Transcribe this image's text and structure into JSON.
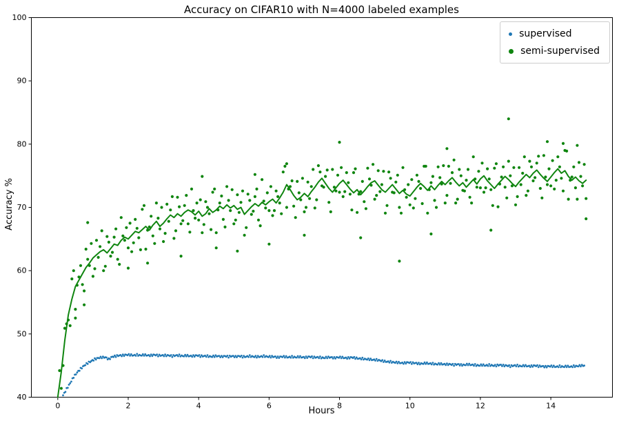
{
  "figure": {
    "title": "Accuracy on CIFAR10 with N=4000 labeled examples",
    "xlabel": "Hours",
    "ylabel": "Accuracy %"
  },
  "legend": {
    "items": [
      {
        "label": "supervised",
        "color": "#1f77b4"
      },
      {
        "label": "semi-supervised",
        "color": "#0f850f"
      }
    ]
  },
  "chart_data": {
    "type": "scatter",
    "title": "Accuracy on CIFAR10 with N=4000 labeled examples",
    "xlabel": "Hours",
    "ylabel": "Accuracy %",
    "xlim": [
      -0.75,
      15.75
    ],
    "ylim": [
      40,
      100
    ],
    "xticks": [
      0,
      2,
      4,
      6,
      8,
      10,
      12,
      14
    ],
    "yticks": [
      40,
      50,
      60,
      70,
      80,
      90,
      100
    ],
    "grid": false,
    "legend_position": "upper right",
    "series": [
      {
        "id": "supervised",
        "name": "supervised",
        "type": "scatter",
        "color": "#1f77b4",
        "marker_size": 1.4,
        "densify": 2,
        "jitter": 0.14,
        "x_start": 0.15,
        "x_step": 0.1,
        "y": [
          40.3,
          41.3,
          42.2,
          43.2,
          43.9,
          44.5,
          45.0,
          45.4,
          45.7,
          46.0,
          46.2,
          46.3,
          46.3,
          46.0,
          46.4,
          46.5,
          46.6,
          46.6,
          46.7,
          46.7,
          46.6,
          46.7,
          46.6,
          46.7,
          46.6,
          46.6,
          46.7,
          46.6,
          46.6,
          46.6,
          46.6,
          46.5,
          46.6,
          46.6,
          46.5,
          46.6,
          46.5,
          46.5,
          46.6,
          46.5,
          46.5,
          46.5,
          46.4,
          46.5,
          46.5,
          46.4,
          46.5,
          46.4,
          46.5,
          46.4,
          46.5,
          46.4,
          46.4,
          46.5,
          46.4,
          46.4,
          46.4,
          46.5,
          46.4,
          46.4,
          46.4,
          46.3,
          46.4,
          46.4,
          46.3,
          46.4,
          46.3,
          46.4,
          46.3,
          46.3,
          46.4,
          46.3,
          46.3,
          46.3,
          46.2,
          46.3,
          46.3,
          46.2,
          46.3,
          46.3,
          46.2,
          46.2,
          46.3,
          46.2,
          46.1,
          46.1,
          46.0,
          46.0,
          45.9,
          45.9,
          45.8,
          45.7,
          45.6,
          45.6,
          45.5,
          45.5,
          45.4,
          45.4,
          45.5,
          45.4,
          45.4,
          45.3,
          45.3,
          45.4,
          45.3,
          45.3,
          45.2,
          45.3,
          45.2,
          45.2,
          45.2,
          45.1,
          45.2,
          45.1,
          45.1,
          45.2,
          45.1,
          45.1,
          45.0,
          45.1,
          45.0,
          45.1,
          45.0,
          45.0,
          45.1,
          45.0,
          45.0,
          44.9,
          45.0,
          45.0,
          44.9,
          45.0,
          44.9,
          44.9,
          45.0,
          44.9,
          44.9,
          44.8,
          44.9,
          44.9,
          44.8,
          44.9,
          44.8,
          44.9,
          44.8,
          44.9,
          44.9,
          45.0,
          45.0
        ]
      },
      {
        "id": "semi-supervised-scatter-a",
        "name": "semi-supervised",
        "type": "scatter",
        "color": "#0f850f",
        "marker_size": 2.1,
        "x_start": 0.05,
        "x_step": 0.1,
        "y": [
          44.2,
          45.0,
          51.6,
          51.3,
          60.0,
          57.7,
          60.8,
          56.8,
          61.8,
          64.3,
          60.3,
          62.1,
          66.3,
          60.7,
          64.5,
          62.9,
          66.6,
          61.0,
          65.5,
          66.8,
          67.5,
          64.4,
          66.7,
          63.3,
          70.3,
          66.4,
          68.6,
          64.3,
          68.3,
          70.0,
          65.9,
          67.8,
          71.7,
          66.3,
          70.1,
          67.9,
          71.9,
          66.1,
          69.5,
          70.7,
          71.2,
          67.3,
          70.0,
          66.5,
          72.9,
          69.6,
          71.8,
          66.9,
          71.1,
          72.8,
          68.0,
          69.2,
          72.6,
          66.8,
          71.1,
          69.4,
          72.9,
          67.1,
          71.0,
          72.3,
          73.3,
          69.5,
          71.7,
          69.0,
          76.5,
          72.9,
          74.2,
          68.4,
          72.3,
          74.6,
          70.0,
          71.4,
          76.0,
          71.2,
          75.6,
          73.2,
          75.9,
          69.3,
          73.2,
          75.1,
          76.3,
          72.5,
          73.9,
          69.6,
          76.1,
          72.1,
          74.1,
          69.8,
          74.5,
          76.8,
          71.9,
          72.5,
          75.7,
          70.3,
          74.6,
          72.3,
          75.1,
          69.1,
          72.8,
          73.6,
          74.4,
          71.4,
          74.1,
          70.6,
          76.5,
          72.8,
          74.9,
          70.0,
          74.7,
          76.6,
          71.9,
          73.8,
          77.5,
          71.3,
          75.0,
          72.6,
          76.0,
          70.7,
          74.5,
          75.7,
          77.0,
          73.1,
          74.5,
          70.3,
          76.9,
          73.7,
          76.4,
          71.5,
          75.0,
          76.3,
          71.7,
          73.6,
          78.0,
          72.6,
          76.4,
          74.7,
          78.1,
          71.5,
          74.8,
          76.1,
          77.4,
          74.3,
          76.4,
          72.6,
          78.9,
          74.3,
          76.4,
          71.3,
          74.9,
          76.8
        ]
      },
      {
        "id": "semi-supervised-scatter-b",
        "name": "semi-supervised",
        "type": "scatter",
        "color": "#0f850f",
        "marker_size": 2.1,
        "x_start": 0.1,
        "x_step": 0.1,
        "y": [
          41.4,
          50.9,
          52.2,
          58.7,
          53.9,
          59.0,
          57.8,
          63.4,
          60.8,
          59.1,
          64.8,
          63.8,
          60.0,
          65.4,
          62.3,
          65.3,
          61.8,
          68.4,
          64.8,
          63.6,
          63.0,
          68.1,
          65.2,
          69.7,
          63.4,
          66.9,
          65.5,
          70.7,
          66.6,
          64.6,
          70.5,
          69.6,
          65.1,
          71.6,
          67.4,
          70.3,
          67.4,
          72.9,
          68.3,
          68.0,
          66.0,
          70.9,
          69.0,
          72.4,
          66.0,
          70.7,
          68.1,
          73.3,
          69.5,
          67.4,
          72.0,
          70.8,
          65.6,
          72.1,
          68.9,
          71.7,
          68.0,
          74.4,
          69.9,
          69.5,
          68.7,
          72.6,
          70.7,
          75.6,
          70.0,
          73.3,
          70.2,
          74.1,
          71.2,
          69.3,
          74.0,
          73.3,
          69.9,
          76.6,
          73.4,
          74.9,
          70.8,
          76.0,
          72.6,
          72.4,
          71.7,
          75.5,
          72.1,
          75.5,
          69.2,
          72.5,
          70.9,
          76.2,
          73.5,
          71.3,
          75.8,
          73.6,
          69.1,
          75.6,
          72.4,
          74.0,
          70.0,
          76.3,
          71.6,
          70.4,
          69.9,
          75.1,
          73.0,
          76.5,
          69.1,
          73.9,
          71.1,
          76.4,
          73.7,
          70.7,
          76.5,
          75.5,
          70.7,
          76.0,
          72.7,
          74.3,
          71.6,
          78.0,
          73.2,
          73.1,
          72.4,
          76.1,
          72.8,
          76.2,
          70.1,
          74.8,
          73.2,
          77.3,
          73.4,
          70.4,
          76.3,
          75.4,
          71.9,
          77.3,
          74.2,
          77.0,
          73.0,
          78.2,
          73.6,
          73.4,
          72.9,
          78.0,
          74.6,
          79.0,
          71.3,
          74.8,
          73.1,
          77.1,
          73.4,
          71.4
        ]
      },
      {
        "id": "semi-supervised-outliers",
        "name": "semi-supervised",
        "type": "scatter",
        "color": "#0f850f",
        "marker_size": 2.1,
        "points": [
          [
            0.5,
            52.5
          ],
          [
            0.75,
            54.6
          ],
          [
            0.85,
            67.6
          ],
          [
            2.0,
            60.4
          ],
          [
            2.55,
            61.2
          ],
          [
            3.5,
            62.3
          ],
          [
            4.1,
            74.9
          ],
          [
            4.5,
            63.6
          ],
          [
            5.1,
            63.1
          ],
          [
            5.6,
            75.2
          ],
          [
            6.0,
            64.2
          ],
          [
            6.5,
            76.9
          ],
          [
            7.0,
            65.6
          ],
          [
            8.0,
            80.3
          ],
          [
            8.6,
            65.2
          ],
          [
            9.7,
            61.5
          ],
          [
            10.6,
            65.8
          ],
          [
            11.05,
            79.3
          ],
          [
            12.3,
            66.4
          ],
          [
            12.8,
            84.0
          ],
          [
            13.9,
            80.4
          ],
          [
            14.35,
            80.1
          ],
          [
            14.75,
            79.8
          ],
          [
            15.0,
            68.2
          ]
        ]
      },
      {
        "id": "semi-supervised-smoothed",
        "name": "semi-supervised running mean",
        "type": "line",
        "color": "#0f850f",
        "width": 2,
        "x_start": 0.0,
        "x_step": 0.1,
        "y": [
          40.0,
          44,
          49,
          53,
          55.5,
          57.5,
          58.5,
          59.5,
          60.5,
          61.2,
          62.0,
          62.5,
          63.0,
          63.3,
          62.8,
          63.5,
          64.2,
          64.0,
          64.8,
          65.3,
          65.0,
          65.6,
          66.2,
          66.0,
          66.5,
          67.0,
          66.4,
          67.2,
          67.8,
          67.0,
          67.5,
          68.2,
          68.8,
          68.4,
          69.0,
          68.6,
          69.2,
          69.6,
          69.3,
          68.8,
          69.4,
          68.6,
          69.0,
          69.8,
          69.2,
          69.6,
          70.2,
          69.8,
          70.4,
          69.9,
          70.3,
          69.7,
          70.0,
          68.9,
          69.5,
          70.1,
          70.6,
          70.2,
          70.8,
          70.4,
          70.9,
          71.3,
          70.7,
          71.5,
          72.4,
          73.6,
          72.8,
          71.9,
          71.2,
          71.6,
          72.2,
          71.7,
          72.5,
          73.2,
          74.0,
          74.6,
          73.8,
          73.0,
          72.4,
          73.1,
          73.8,
          74.3,
          73.6,
          72.9,
          72.3,
          72.8,
          72.0,
          72.6,
          73.3,
          73.9,
          74.2,
          73.5,
          72.8,
          72.4,
          73.0,
          73.6,
          72.9,
          72.2,
          72.7,
          72.1,
          71.8,
          72.5,
          73.2,
          73.8,
          73.3,
          72.7,
          73.4,
          72.8,
          73.5,
          74.1,
          73.6,
          74.2,
          74.7,
          74.0,
          73.4,
          73.9,
          73.2,
          73.8,
          74.4,
          73.7,
          74.5,
          75.0,
          74.2,
          73.6,
          73.0,
          73.7,
          74.3,
          74.9,
          74.4,
          73.8,
          73.3,
          74.0,
          74.6,
          75.2,
          74.7,
          75.4,
          75.9,
          75.2,
          74.6,
          74.1,
          74.8,
          75.5,
          76.1,
          75.4,
          75.8,
          74.9,
          74.3,
          74.8,
          74.2,
          73.8,
          74.3
        ]
      }
    ]
  }
}
